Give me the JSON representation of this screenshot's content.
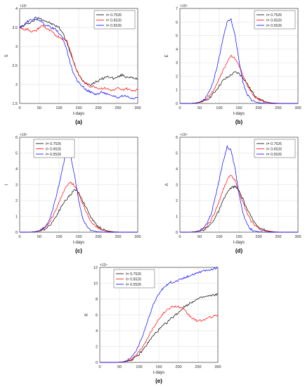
{
  "colors": {
    "s0": "#000000",
    "s1": "#ff0000",
    "s2": "#0000ff",
    "grid": "#dddddd",
    "axis": "#262626"
  },
  "chart_data": [
    {
      "type": "line",
      "panel_label": "(a)",
      "xlabel": "t-days",
      "ylabel": "S",
      "exponent": "×10⁷",
      "xlim": [
        0,
        300
      ],
      "ylim": [
        1.5,
        4
      ],
      "xticks": [
        "0",
        "50",
        "100",
        "150",
        "200",
        "250",
        "300"
      ],
      "yticks": [
        "1.5",
        "2",
        "2.5",
        "3",
        "3.5",
        "4"
      ],
      "legend_position": "top-right",
      "x": [
        0,
        10,
        20,
        30,
        40,
        50,
        60,
        70,
        80,
        90,
        100,
        110,
        120,
        130,
        140,
        150,
        160,
        170,
        180,
        190,
        200,
        210,
        220,
        230,
        240,
        250,
        260,
        270,
        280,
        290,
        300
      ],
      "series": [
        {
          "name": "ℓ= 0.7526",
          "values": [
            3.5,
            3.55,
            3.6,
            3.65,
            3.7,
            3.75,
            3.7,
            3.65,
            3.6,
            3.55,
            3.5,
            3.35,
            3.1,
            2.8,
            2.5,
            2.25,
            2.1,
            2.03,
            2.0,
            2.05,
            2.1,
            2.15,
            2.2,
            2.2,
            2.15,
            2.2,
            2.25,
            2.2,
            2.2,
            2.15,
            2.15
          ]
        },
        {
          "name": "ℓ= 0.6526",
          "values": [
            3.5,
            3.45,
            3.45,
            3.4,
            3.4,
            3.5,
            3.55,
            3.45,
            3.4,
            3.3,
            3.25,
            3.2,
            3.15,
            2.85,
            2.5,
            2.25,
            2.1,
            2.0,
            1.95,
            1.95,
            1.9,
            1.9,
            1.9,
            1.85,
            1.85,
            1.9,
            1.85,
            1.9,
            1.85,
            1.85,
            1.85
          ]
        },
        {
          "name": "ℓ= 0.5526",
          "values": [
            3.5,
            3.55,
            3.65,
            3.7,
            3.75,
            3.7,
            3.6,
            3.55,
            3.5,
            3.45,
            3.35,
            3.2,
            2.9,
            2.5,
            2.2,
            2.05,
            1.95,
            1.85,
            1.8,
            1.75,
            1.75,
            1.8,
            1.75,
            1.7,
            1.7,
            1.65,
            1.7,
            1.7,
            1.65,
            1.65,
            1.65
          ]
        }
      ]
    },
    {
      "type": "line",
      "panel_label": "(b)",
      "xlabel": "t-days",
      "ylabel": "E",
      "exponent": "×10⁵",
      "xlim": [
        0,
        300
      ],
      "ylim": [
        0,
        7
      ],
      "xticks": [
        "0",
        "50",
        "100",
        "150",
        "200",
        "250",
        "300"
      ],
      "yticks": [
        "0",
        "1",
        "2",
        "3",
        "4",
        "5",
        "6",
        "7"
      ],
      "legend_position": "top-right",
      "x": [
        0,
        10,
        20,
        30,
        40,
        50,
        60,
        70,
        80,
        90,
        100,
        110,
        120,
        130,
        140,
        150,
        160,
        170,
        180,
        190,
        200,
        210,
        220,
        230,
        240,
        250,
        260,
        270,
        280,
        290,
        300
      ],
      "series": [
        {
          "name": "ℓ= 0.7526",
          "values": [
            0,
            0,
            0,
            0.01,
            0.03,
            0.07,
            0.15,
            0.3,
            0.55,
            0.9,
            1.3,
            1.7,
            1.9,
            2.1,
            2.3,
            2.2,
            1.9,
            1.5,
            1.0,
            0.6,
            0.35,
            0.2,
            0.1,
            0.05,
            0.02,
            0.01,
            0,
            0,
            0,
            0,
            0
          ]
        },
        {
          "name": "ℓ= 0.6526",
          "values": [
            0,
            0,
            0,
            0.01,
            0.03,
            0.08,
            0.18,
            0.4,
            0.75,
            1.2,
            1.8,
            2.5,
            3.0,
            3.5,
            3.3,
            2.8,
            2.1,
            1.4,
            0.9,
            0.5,
            0.3,
            0.15,
            0.08,
            0.04,
            0.02,
            0.01,
            0,
            0,
            0,
            0,
            0
          ]
        },
        {
          "name": "ℓ= 0.5526",
          "values": [
            0,
            0,
            0,
            0.01,
            0.04,
            0.1,
            0.25,
            0.6,
            1.2,
            2.2,
            3.4,
            4.8,
            6.0,
            6.2,
            5.0,
            3.2,
            1.6,
            0.7,
            0.3,
            0.12,
            0.05,
            0.02,
            0.01,
            0,
            0,
            0,
            0,
            0,
            0,
            0,
            0
          ]
        }
      ]
    },
    {
      "type": "line",
      "panel_label": "(c)",
      "xlabel": "t-days",
      "ylabel": "I",
      "exponent": "×10⁵",
      "xlim": [
        0,
        300
      ],
      "ylim": [
        0,
        6
      ],
      "xticks": [
        "0",
        "50",
        "100",
        "150",
        "200",
        "250",
        "300"
      ],
      "yticks": [
        "0",
        "1",
        "2",
        "3",
        "4",
        "5",
        "6"
      ],
      "legend_position": "top-left",
      "x": [
        0,
        10,
        20,
        30,
        40,
        50,
        60,
        70,
        80,
        90,
        100,
        110,
        120,
        130,
        140,
        150,
        160,
        170,
        180,
        190,
        200,
        210,
        220,
        230,
        240,
        250,
        260,
        270,
        280,
        290,
        300
      ],
      "series": [
        {
          "name": "ℓ= 0.7526",
          "values": [
            0,
            0,
            0,
            0.01,
            0.03,
            0.07,
            0.15,
            0.3,
            0.55,
            0.9,
            1.35,
            1.8,
            2.1,
            2.4,
            2.7,
            2.5,
            2.0,
            1.5,
            1.0,
            0.6,
            0.35,
            0.2,
            0.1,
            0.05,
            0.02,
            0.01,
            0,
            0,
            0,
            0,
            0
          ]
        },
        {
          "name": "ℓ= 0.6526",
          "values": [
            0,
            0,
            0,
            0.01,
            0.03,
            0.08,
            0.2,
            0.42,
            0.8,
            1.3,
            1.9,
            2.5,
            2.9,
            3.2,
            2.9,
            2.4,
            1.8,
            1.2,
            0.75,
            0.45,
            0.25,
            0.12,
            0.06,
            0.03,
            0.01,
            0,
            0,
            0,
            0,
            0,
            0
          ]
        },
        {
          "name": "ℓ= 0.5526",
          "values": [
            0,
            0,
            0,
            0.01,
            0.04,
            0.1,
            0.25,
            0.55,
            1.1,
            2.0,
            3.0,
            4.2,
            5.2,
            4.8,
            3.5,
            2.0,
            0.9,
            0.4,
            0.15,
            0.06,
            0.02,
            0.01,
            0,
            0,
            0,
            0,
            0,
            0,
            0,
            0,
            0
          ]
        }
      ]
    },
    {
      "type": "line",
      "panel_label": "(d)",
      "xlabel": "t-days",
      "ylabel": "A",
      "exponent": "×10⁴",
      "xlim": [
        0,
        300
      ],
      "ylim": [
        0,
        6
      ],
      "xticks": [
        "0",
        "50",
        "100",
        "150",
        "200",
        "250",
        "300"
      ],
      "yticks": [
        "0",
        "1",
        "2",
        "3",
        "4",
        "5",
        "6"
      ],
      "legend_position": "top-right",
      "x": [
        0,
        10,
        20,
        30,
        40,
        50,
        60,
        70,
        80,
        90,
        100,
        110,
        120,
        130,
        140,
        150,
        160,
        170,
        180,
        190,
        200,
        210,
        220,
        230,
        240,
        250,
        260,
        270,
        280,
        290,
        300
      ],
      "series": [
        {
          "name": "ℓ= 0.7526",
          "values": [
            0,
            0,
            0,
            0.01,
            0.03,
            0.07,
            0.15,
            0.3,
            0.55,
            0.95,
            1.4,
            2.0,
            2.5,
            2.8,
            2.9,
            2.6,
            2.1,
            1.5,
            1.0,
            0.6,
            0.35,
            0.2,
            0.1,
            0.05,
            0.02,
            0.01,
            0,
            0,
            0,
            0,
            0
          ]
        },
        {
          "name": "ℓ= 0.6526",
          "values": [
            0,
            0,
            0,
            0.01,
            0.03,
            0.08,
            0.2,
            0.42,
            0.8,
            1.35,
            2.0,
            2.7,
            3.3,
            3.6,
            3.3,
            2.6,
            1.9,
            1.2,
            0.75,
            0.45,
            0.25,
            0.12,
            0.06,
            0.03,
            0.01,
            0,
            0,
            0,
            0,
            0,
            0
          ]
        },
        {
          "name": "ℓ= 0.5526",
          "values": [
            0,
            0,
            0,
            0.01,
            0.04,
            0.1,
            0.26,
            0.6,
            1.2,
            2.2,
            3.3,
            4.5,
            5.4,
            5.2,
            4.0,
            2.5,
            1.2,
            0.5,
            0.2,
            0.08,
            0.03,
            0.01,
            0,
            0,
            0,
            0,
            0,
            0,
            0,
            0,
            0
          ]
        }
      ]
    },
    {
      "type": "line",
      "panel_label": "(e)",
      "xlabel": "t-days",
      "ylabel": "R",
      "exponent": "×10⁴",
      "xlim": [
        0,
        300
      ],
      "ylim": [
        0,
        12
      ],
      "xticks": [
        "0",
        "50",
        "100",
        "150",
        "200",
        "250",
        "300"
      ],
      "yticks": [
        "0",
        "2",
        "4",
        "6",
        "8",
        "10",
        "12"
      ],
      "legend_position": "top-left",
      "x": [
        0,
        10,
        20,
        30,
        40,
        50,
        60,
        70,
        80,
        90,
        100,
        110,
        120,
        130,
        140,
        150,
        160,
        170,
        180,
        190,
        200,
        210,
        220,
        230,
        240,
        250,
        260,
        270,
        280,
        290,
        300
      ],
      "series": [
        {
          "name": "ℓ= 0.7526",
          "values": [
            0,
            0,
            0,
            0,
            0,
            0.02,
            0.05,
            0.15,
            0.3,
            0.6,
            1.0,
            1.6,
            2.3,
            3.0,
            3.6,
            4.1,
            4.6,
            5.0,
            5.5,
            5.9,
            6.3,
            6.8,
            7.2,
            7.5,
            7.8,
            8.0,
            8.2,
            8.3,
            8.4,
            8.5,
            8.6
          ]
        },
        {
          "name": "ℓ= 0.6526",
          "values": [
            0,
            0,
            0,
            0,
            0,
            0.02,
            0.06,
            0.18,
            0.4,
            0.8,
            1.4,
            2.1,
            3.0,
            3.9,
            4.7,
            5.5,
            6.1,
            6.6,
            7.0,
            7.1,
            7.0,
            6.8,
            6.3,
            5.8,
            5.4,
            5.2,
            5.3,
            5.5,
            5.7,
            5.8,
            6.0
          ]
        },
        {
          "name": "ℓ= 0.5526",
          "values": [
            0,
            0,
            0,
            0,
            0,
            0.03,
            0.08,
            0.25,
            0.6,
            1.3,
            2.2,
            3.5,
            5.0,
            6.5,
            7.8,
            8.6,
            9.3,
            9.8,
            10.1,
            10.2,
            10.4,
            10.6,
            10.8,
            11.0,
            11.2,
            11.4,
            11.5,
            11.6,
            11.7,
            11.8,
            12.0
          ]
        }
      ]
    }
  ]
}
